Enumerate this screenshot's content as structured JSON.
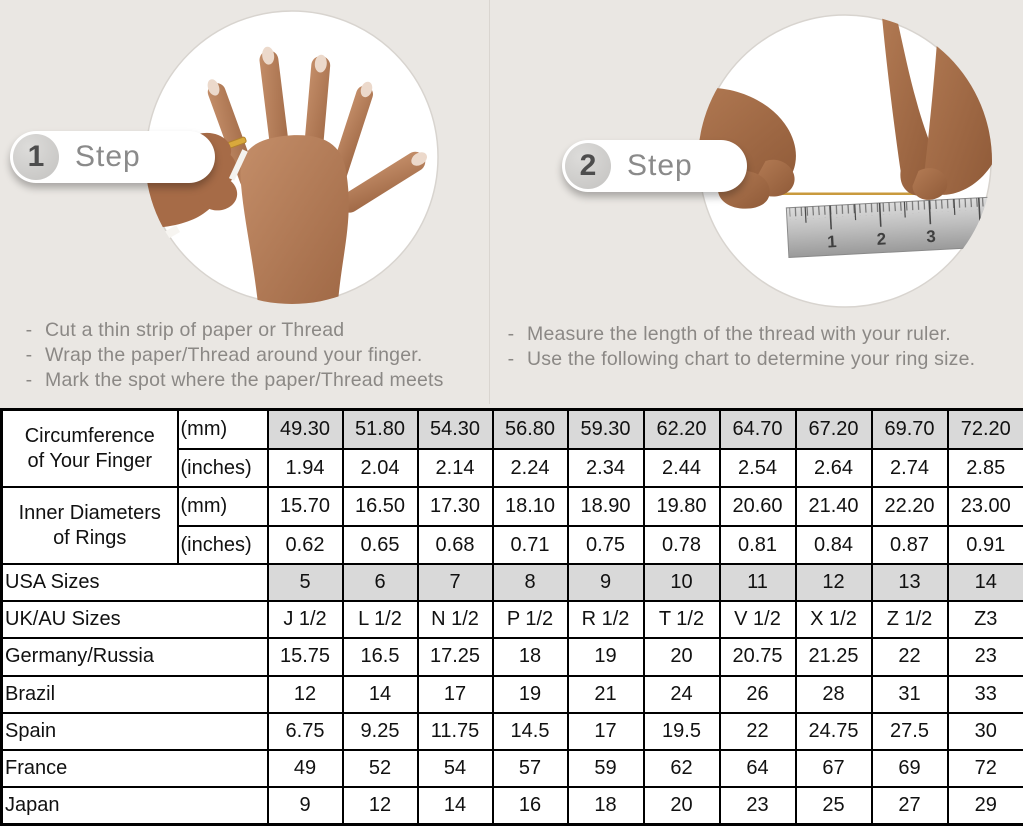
{
  "colors": {
    "background": "#eae7e3",
    "shaded_cell": "#d9d9d9",
    "table_border": "#000000",
    "instruction_text": "#8b8885",
    "thread_gold": "#c99a3e",
    "ring_gold": "#d9a93c"
  },
  "bullet_marker": "-",
  "steps": [
    {
      "number": "1",
      "label": "Step",
      "bullets": [
        "Cut a thin strip of paper or Thread",
        "Wrap the paper/Thread around your finger.",
        "Mark the spot where the paper/Thread meets"
      ]
    },
    {
      "number": "2",
      "label": "Step",
      "bullets": [
        "Measure the length of the thread with your ruler.",
        "Use the following chart to determine your ring size."
      ]
    }
  ],
  "illustrations": {
    "ruler_numbers": [
      "1",
      "2",
      "3"
    ]
  },
  "table": {
    "rows": [
      {
        "label_lines": [
          "Circumference",
          "of Your Finger"
        ],
        "label_rowspan": 2,
        "unit": "(mm)",
        "values": [
          "49.30",
          "51.80",
          "54.30",
          "56.80",
          "59.30",
          "62.20",
          "64.70",
          "67.20",
          "69.70",
          "72.20"
        ],
        "shaded": true
      },
      {
        "unit": "(inches)",
        "values": [
          "1.94",
          "2.04",
          "2.14",
          "2.24",
          "2.34",
          "2.44",
          "2.54",
          "2.64",
          "2.74",
          "2.85"
        ]
      },
      {
        "label_lines": [
          "Inner Diameters",
          "of Rings"
        ],
        "label_rowspan": 2,
        "unit": "(mm)",
        "values": [
          "15.70",
          "16.50",
          "17.30",
          "18.10",
          "18.90",
          "19.80",
          "20.60",
          "21.40",
          "22.20",
          "23.00"
        ]
      },
      {
        "unit": "(inches)",
        "values": [
          "0.62",
          "0.65",
          "0.68",
          "0.71",
          "0.75",
          "0.78",
          "0.81",
          "0.84",
          "0.87",
          "0.91"
        ]
      },
      {
        "label": "USA Sizes",
        "label_colspan": 2,
        "values": [
          "5",
          "6",
          "7",
          "8",
          "9",
          "10",
          "11",
          "12",
          "13",
          "14"
        ],
        "shaded": true
      },
      {
        "label": "UK/AU Sizes",
        "label_colspan": 2,
        "values": [
          "J 1/2",
          "L 1/2",
          "N 1/2",
          "P 1/2",
          "R 1/2",
          "T 1/2",
          "V 1/2",
          "X 1/2",
          "Z 1/2",
          "Z3"
        ]
      },
      {
        "label": "Germany/Russia",
        "label_colspan": 2,
        "values": [
          "15.75",
          "16.5",
          "17.25",
          "18",
          "19",
          "20",
          "20.75",
          "21.25",
          "22",
          "23"
        ]
      },
      {
        "label": "Brazil",
        "label_colspan": 2,
        "values": [
          "12",
          "14",
          "17",
          "19",
          "21",
          "24",
          "26",
          "28",
          "31",
          "33"
        ]
      },
      {
        "label": "Spain",
        "label_colspan": 2,
        "values": [
          "6.75",
          "9.25",
          "11.75",
          "14.5",
          "17",
          "19.5",
          "22",
          "24.75",
          "27.5",
          "30"
        ]
      },
      {
        "label": "France",
        "label_colspan": 2,
        "values": [
          "49",
          "52",
          "54",
          "57",
          "59",
          "62",
          "64",
          "67",
          "69",
          "72"
        ]
      },
      {
        "label": "Japan",
        "label_colspan": 2,
        "values": [
          "9",
          "12",
          "14",
          "16",
          "18",
          "20",
          "23",
          "25",
          "27",
          "29"
        ]
      }
    ]
  }
}
